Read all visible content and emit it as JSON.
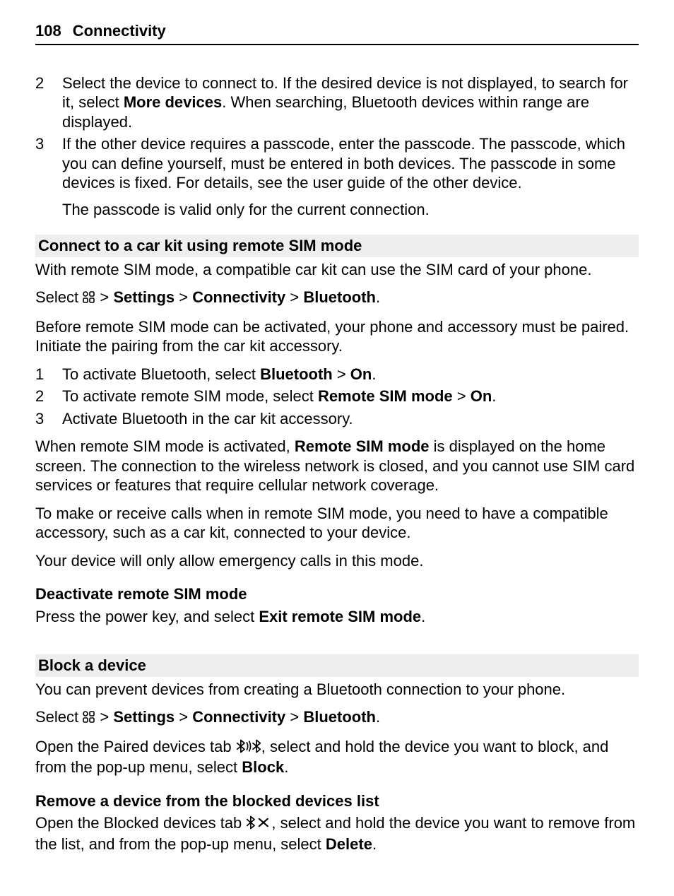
{
  "page": {
    "number": "108",
    "section": "Connectivity"
  },
  "intro_steps": {
    "items": [
      {
        "num": "2",
        "runs": [
          {
            "t": "Select the device to connect to. If the desired device is not displayed, to search for it, select "
          },
          {
            "t": "More devices",
            "bold": true
          },
          {
            "t": ". When searching, Bluetooth devices within range are displayed."
          }
        ]
      },
      {
        "num": "3",
        "runs": [
          {
            "t": "If the other device requires a passcode, enter the passcode. The passcode, which you can define yourself, must be entered in both devices. The passcode in some devices is fixed. For details, see the user guide of the other device."
          }
        ],
        "follow": [
          {
            "t": "The passcode is valid only for the current connection."
          }
        ]
      }
    ]
  },
  "carkit": {
    "heading": "Connect to a car kit using remote SIM mode",
    "intro": [
      {
        "t": "With remote SIM mode, a compatible car kit can use the SIM card of your phone."
      }
    ],
    "select": [
      {
        "t": "Select "
      },
      {
        "icon": "menu"
      },
      {
        "t": " > "
      },
      {
        "t": "Settings",
        "bold": true
      },
      {
        "t": " > "
      },
      {
        "t": "Connectivity",
        "bold": true
      },
      {
        "t": " > "
      },
      {
        "t": "Bluetooth",
        "bold": true
      },
      {
        "t": "."
      }
    ],
    "pairing": [
      {
        "t": "Before remote SIM mode can be activated, your phone and accessory must be paired. Initiate the pairing from the car kit accessory."
      }
    ],
    "steps": [
      {
        "num": "1",
        "runs": [
          {
            "t": "To activate Bluetooth, select "
          },
          {
            "t": "Bluetooth",
            "bold": true
          },
          {
            "t": " > "
          },
          {
            "t": "On",
            "bold": true
          },
          {
            "t": "."
          }
        ]
      },
      {
        "num": "2",
        "runs": [
          {
            "t": "To activate remote SIM mode, select "
          },
          {
            "t": "Remote SIM mode",
            "bold": true
          },
          {
            "t": " > "
          },
          {
            "t": "On",
            "bold": true
          },
          {
            "t": "."
          }
        ]
      },
      {
        "num": "3",
        "runs": [
          {
            "t": "Activate Bluetooth in the car kit accessory."
          }
        ]
      }
    ],
    "activated": [
      {
        "t": "When remote SIM mode is activated, "
      },
      {
        "t": "Remote SIM mode",
        "bold": true
      },
      {
        "t": " is displayed on the home screen. The connection to the wireless network is closed, and you cannot use SIM card services or features that require cellular network coverage."
      }
    ],
    "calls": [
      {
        "t": "To make or receive calls when in remote SIM mode, you need to have a compatible accessory, such as a car kit, connected to your device."
      }
    ],
    "emergency": [
      {
        "t": "Your device will only allow emergency calls in this mode."
      }
    ],
    "deactivate_heading": "Deactivate remote SIM mode",
    "deactivate": [
      {
        "t": "Press the power key, and select "
      },
      {
        "t": "Exit remote SIM mode",
        "bold": true
      },
      {
        "t": "."
      }
    ]
  },
  "block": {
    "heading": "Block a device",
    "intro": [
      {
        "t": "You can prevent devices from creating a Bluetooth connection to your phone."
      }
    ],
    "select": [
      {
        "t": "Select "
      },
      {
        "icon": "menu"
      },
      {
        "t": " > "
      },
      {
        "t": "Settings",
        "bold": true
      },
      {
        "t": " > "
      },
      {
        "t": "Connectivity",
        "bold": true
      },
      {
        "t": " > "
      },
      {
        "t": "Bluetooth",
        "bold": true
      },
      {
        "t": "."
      }
    ],
    "paired_tab": [
      {
        "t": "Open the Paired devices tab "
      },
      {
        "icon": "bt-pair"
      },
      {
        "t": ", select and hold the device you want to block, and from the pop-up menu, select "
      },
      {
        "t": "Block",
        "bold": true
      },
      {
        "t": "."
      }
    ],
    "remove_heading": "Remove a device from the blocked devices list",
    "blocked_tab": [
      {
        "t": "Open the Blocked devices tab "
      },
      {
        "icon": "bt-x"
      },
      {
        "t": ", select and hold the device you want to remove from the list, and from the pop-up menu, select "
      },
      {
        "t": "Delete",
        "bold": true
      },
      {
        "t": "."
      }
    ]
  },
  "icons": {
    "color": "#000000"
  }
}
